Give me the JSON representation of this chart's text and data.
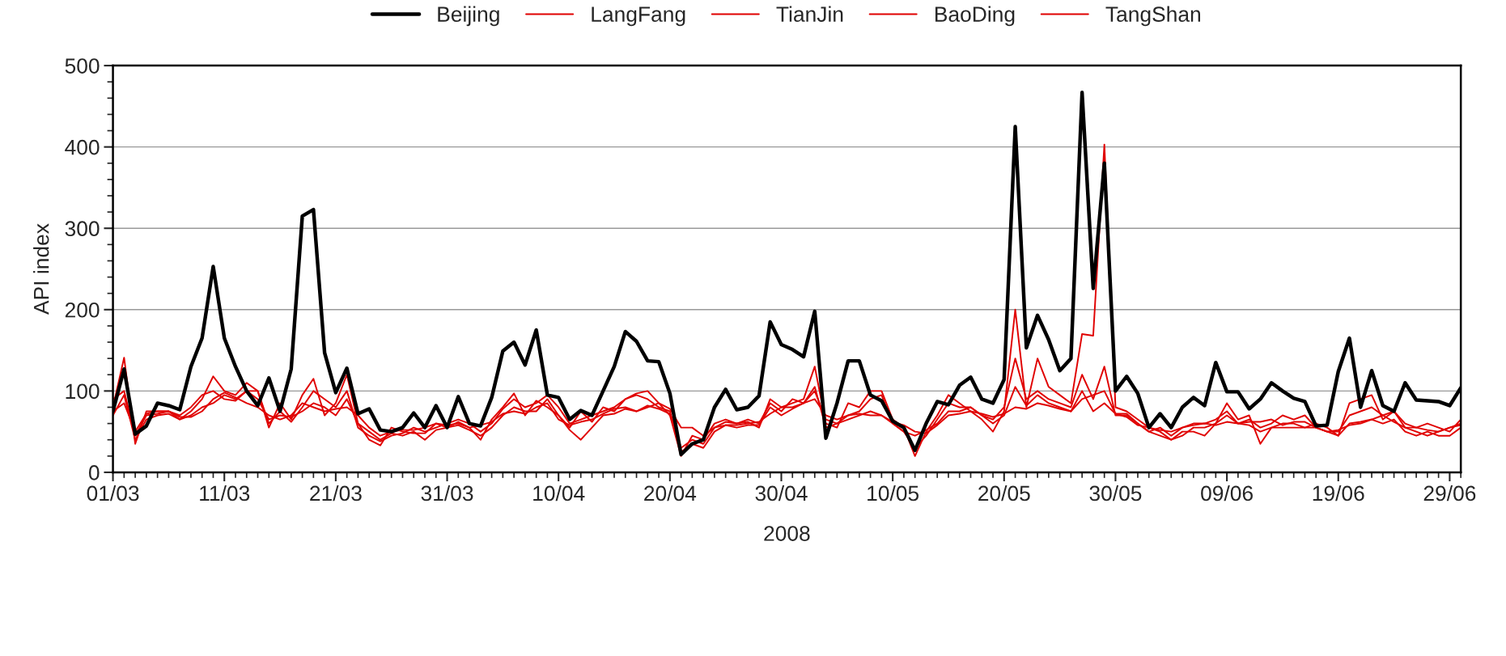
{
  "chart_data": {
    "type": "line",
    "xlabel": "2008",
    "ylabel": "API index",
    "x": [
      "2008-03-01",
      "2008-03-02",
      "2008-03-03",
      "2008-03-04",
      "2008-03-05",
      "2008-03-06",
      "2008-03-07",
      "2008-03-08",
      "2008-03-09",
      "2008-03-10",
      "2008-03-11",
      "2008-03-12",
      "2008-03-13",
      "2008-03-14",
      "2008-03-15",
      "2008-03-16",
      "2008-03-17",
      "2008-03-18",
      "2008-03-19",
      "2008-03-20",
      "2008-03-21",
      "2008-03-22",
      "2008-03-23",
      "2008-03-24",
      "2008-03-25",
      "2008-03-26",
      "2008-03-27",
      "2008-03-28",
      "2008-03-29",
      "2008-03-30",
      "2008-03-31",
      "2008-04-01",
      "2008-04-02",
      "2008-04-03",
      "2008-04-04",
      "2008-04-05",
      "2008-04-06",
      "2008-04-07",
      "2008-04-08",
      "2008-04-09",
      "2008-04-10",
      "2008-04-11",
      "2008-04-12",
      "2008-04-13",
      "2008-04-14",
      "2008-04-15",
      "2008-04-16",
      "2008-04-17",
      "2008-04-18",
      "2008-04-19",
      "2008-04-20",
      "2008-04-21",
      "2008-04-22",
      "2008-04-23",
      "2008-04-24",
      "2008-04-25",
      "2008-04-26",
      "2008-04-27",
      "2008-04-28",
      "2008-04-29",
      "2008-04-30",
      "2008-05-01",
      "2008-05-02",
      "2008-05-03",
      "2008-05-04",
      "2008-05-05",
      "2008-05-06",
      "2008-05-07",
      "2008-05-08",
      "2008-05-09",
      "2008-05-10",
      "2008-05-11",
      "2008-05-12",
      "2008-05-13",
      "2008-05-14",
      "2008-05-15",
      "2008-05-16",
      "2008-05-17",
      "2008-05-18",
      "2008-05-19",
      "2008-05-20",
      "2008-05-21",
      "2008-05-22",
      "2008-05-23",
      "2008-05-24",
      "2008-05-25",
      "2008-05-26",
      "2008-05-27",
      "2008-05-28",
      "2008-05-29",
      "2008-05-30",
      "2008-05-31",
      "2008-06-01",
      "2008-06-02",
      "2008-06-03",
      "2008-06-04",
      "2008-06-05",
      "2008-06-06",
      "2008-06-07",
      "2008-06-08",
      "2008-06-09",
      "2008-06-10",
      "2008-06-11",
      "2008-06-12",
      "2008-06-13",
      "2008-06-14",
      "2008-06-15",
      "2008-06-16",
      "2008-06-17",
      "2008-06-18",
      "2008-06-19",
      "2008-06-20",
      "2008-06-21",
      "2008-06-22",
      "2008-06-23",
      "2008-06-24",
      "2008-06-25",
      "2008-06-26",
      "2008-06-27",
      "2008-06-28",
      "2008-06-29",
      "2008-06-30"
    ],
    "series": [
      {
        "name": "Beijing",
        "color": "#000000",
        "values": [
          75,
          127,
          47,
          57,
          85,
          82,
          77,
          130,
          165,
          253,
          165,
          130,
          100,
          82,
          116,
          75,
          127,
          315,
          323,
          147,
          98,
          128,
          72,
          78,
          52,
          50,
          55,
          73,
          55,
          82,
          55,
          93,
          60,
          57,
          92,
          149,
          160,
          132,
          175,
          95,
          92,
          65,
          76,
          70,
          100,
          130,
          173,
          161,
          137,
          136,
          97,
          22,
          35,
          40,
          80,
          102,
          77,
          80,
          94,
          185,
          157,
          151,
          142,
          198,
          42,
          85,
          137,
          137,
          95,
          88,
          63,
          55,
          27,
          60,
          87,
          83,
          107,
          117,
          90,
          85,
          114,
          425,
          153,
          193,
          163,
          125,
          140,
          467,
          226,
          380,
          100,
          118,
          97,
          55,
          72,
          55,
          80,
          92,
          82,
          135,
          99,
          99,
          78,
          90,
          110,
          100,
          91,
          87,
          57,
          58,
          124,
          165,
          80,
          125,
          82,
          75,
          110,
          89,
          88,
          87,
          82,
          104
        ]
      },
      {
        "name": "LangFang",
        "color": "#e00000",
        "values": [
          80,
          141,
          35,
          75,
          75,
          75,
          65,
          75,
          90,
          118,
          100,
          95,
          110,
          100,
          55,
          85,
          65,
          95,
          115,
          70,
          85,
          120,
          60,
          40,
          33,
          55,
          50,
          48,
          48,
          60,
          55,
          62,
          55,
          40,
          65,
          80,
          97,
          70,
          88,
          80,
          70,
          55,
          75,
          62,
          80,
          75,
          90,
          97,
          100,
          85,
          70,
          20,
          45,
          40,
          60,
          65,
          60,
          62,
          55,
          90,
          80,
          85,
          90,
          130,
          60,
          55,
          85,
          80,
          100,
          100,
          65,
          55,
          20,
          50,
          70,
          95,
          85,
          75,
          65,
          50,
          75,
          200,
          80,
          140,
          105,
          95,
          85,
          170,
          168,
          403,
          80,
          75,
          65,
          55,
          50,
          40,
          50,
          50,
          45,
          60,
          85,
          65,
          70,
          35,
          55,
          55,
          55,
          55,
          60,
          55,
          45,
          85,
          90,
          95,
          65,
          75,
          55,
          50,
          45,
          50,
          55,
          60
        ]
      },
      {
        "name": "TianJin",
        "color": "#e00000",
        "values": [
          90,
          100,
          45,
          70,
          72,
          75,
          70,
          80,
          95,
          100,
          90,
          88,
          100,
          100,
          60,
          75,
          62,
          80,
          100,
          90,
          80,
          100,
          55,
          45,
          38,
          45,
          48,
          55,
          50,
          55,
          60,
          65,
          60,
          50,
          60,
          78,
          90,
          80,
          85,
          95,
          80,
          60,
          65,
          70,
          75,
          80,
          90,
          95,
          90,
          80,
          75,
          30,
          40,
          35,
          55,
          62,
          60,
          65,
          60,
          85,
          75,
          90,
          85,
          100,
          65,
          60,
          70,
          75,
          90,
          95,
          60,
          50,
          30,
          45,
          65,
          85,
          80,
          80,
          70,
          65,
          80,
          140,
          90,
          100,
          90,
          85,
          80,
          120,
          90,
          130,
          70,
          70,
          60,
          50,
          55,
          45,
          55,
          60,
          60,
          65,
          75,
          60,
          65,
          55,
          60,
          70,
          65,
          70,
          55,
          50,
          50,
          70,
          75,
          80,
          70,
          75,
          60,
          55,
          60,
          55,
          50,
          65
        ]
      },
      {
        "name": "BaoDing",
        "color": "#e00000",
        "values": [
          70,
          95,
          40,
          65,
          70,
          72,
          65,
          70,
          80,
          85,
          95,
          90,
          100,
          90,
          65,
          70,
          68,
          75,
          85,
          80,
          70,
          90,
          60,
          50,
          40,
          48,
          45,
          50,
          40,
          52,
          55,
          58,
          52,
          45,
          55,
          70,
          80,
          75,
          75,
          90,
          70,
          52,
          40,
          55,
          70,
          72,
          78,
          75,
          82,
          78,
          72,
          25,
          35,
          30,
          50,
          58,
          55,
          58,
          58,
          80,
          70,
          78,
          85,
          105,
          55,
          60,
          65,
          70,
          75,
          70,
          60,
          50,
          45,
          52,
          60,
          75,
          75,
          80,
          70,
          60,
          70,
          105,
          82,
          95,
          85,
          80,
          75,
          100,
          75,
          85,
          72,
          72,
          60,
          50,
          45,
          40,
          45,
          55,
          55,
          60,
          70,
          60,
          58,
          50,
          55,
          60,
          60,
          55,
          55,
          50,
          45,
          60,
          62,
          65,
          60,
          65,
          50,
          45,
          50,
          45,
          45,
          55
        ]
      },
      {
        "name": "TangShan",
        "color": "#e00000",
        "values": [
          75,
          85,
          50,
          72,
          75,
          75,
          68,
          68,
          75,
          90,
          98,
          92,
          85,
          80,
          70,
          65,
          70,
          85,
          80,
          75,
          78,
          80,
          70,
          55,
          45,
          50,
          52,
          52,
          55,
          60,
          58,
          60,
          55,
          58,
          62,
          72,
          75,
          72,
          80,
          85,
          65,
          58,
          62,
          65,
          72,
          78,
          80,
          75,
          80,
          85,
          78,
          55,
          55,
          45,
          55,
          58,
          58,
          60,
          62,
          72,
          80,
          80,
          85,
          90,
          70,
          65,
          70,
          72,
          70,
          70,
          62,
          58,
          50,
          48,
          58,
          70,
          72,
          75,
          72,
          68,
          72,
          80,
          78,
          85,
          82,
          78,
          75,
          90,
          95,
          100,
          72,
          68,
          58,
          55,
          52,
          50,
          55,
          58,
          60,
          58,
          62,
          60,
          62,
          62,
          65,
          58,
          62,
          62,
          55,
          50,
          52,
          58,
          60,
          65,
          70,
          62,
          55,
          55,
          52,
          50,
          55,
          58
        ]
      }
    ],
    "xlim": [
      "2008-03-01",
      "2008-06-30"
    ],
    "xticks": [
      {
        "value": "2008-03-01",
        "label": "01/03"
      },
      {
        "value": "2008-03-11",
        "label": "11/03"
      },
      {
        "value": "2008-03-21",
        "label": "21/03"
      },
      {
        "value": "2008-03-31",
        "label": "31/03"
      },
      {
        "value": "2008-04-10",
        "label": "10/04"
      },
      {
        "value": "2008-04-20",
        "label": "20/04"
      },
      {
        "value": "2008-04-30",
        "label": "30/04"
      },
      {
        "value": "2008-05-10",
        "label": "10/05"
      },
      {
        "value": "2008-05-20",
        "label": "20/05"
      },
      {
        "value": "2008-05-30",
        "label": "30/05"
      },
      {
        "value": "2008-06-09",
        "label": "09/06"
      },
      {
        "value": "2008-06-19",
        "label": "19/06"
      },
      {
        "value": "2008-06-29",
        "label": "29/06"
      }
    ],
    "ylim": [
      0,
      500
    ],
    "yticks": [
      0,
      100,
      200,
      300,
      400,
      500
    ],
    "grid": "y",
    "legend": "top",
    "marker": "none",
    "line_style": "solid"
  }
}
